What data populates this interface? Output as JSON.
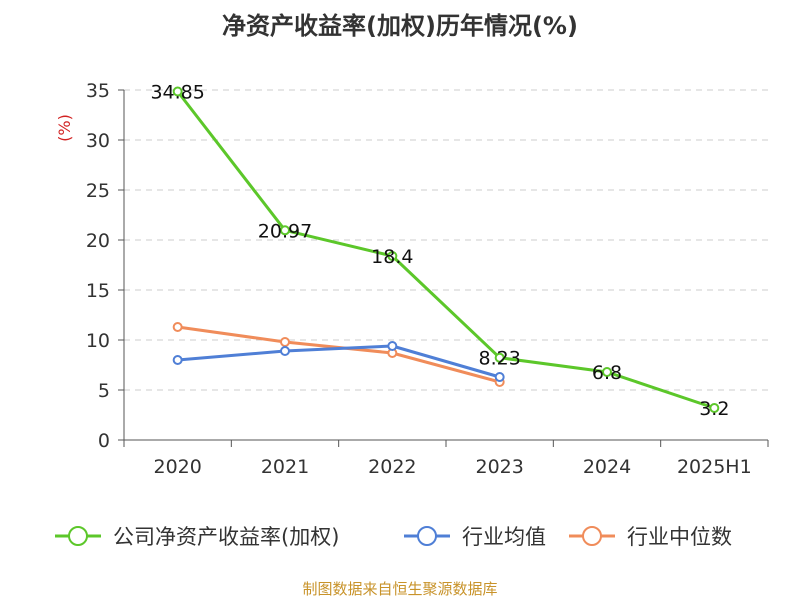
{
  "chart_data": {
    "type": "line",
    "title": "净资产收益率(加权)历年情况(%)",
    "ylabel": "(%)",
    "xlabel": "",
    "categories": [
      "2020",
      "2021",
      "2022",
      "2023",
      "2024",
      "2025H1"
    ],
    "ylim": [
      0,
      35
    ],
    "yticks": [
      0,
      5,
      10,
      15,
      20,
      25,
      30,
      35
    ],
    "grid": true,
    "legend_position": "bottom",
    "series": [
      {
        "name": "公司净资产收益率(加权)",
        "color": "#5cc72a",
        "values": [
          34.85,
          20.97,
          18.4,
          8.23,
          6.8,
          3.2
        ],
        "labels": [
          "34.85",
          "20.97",
          "18.4",
          "8.23",
          "6.8",
          "3.2"
        ]
      },
      {
        "name": "行业均值",
        "color": "#4f7fd6",
        "values": [
          8.0,
          8.9,
          9.4,
          6.3,
          null,
          null
        ]
      },
      {
        "name": "行业中位数",
        "color": "#f08c5a",
        "values": [
          11.3,
          9.8,
          8.7,
          5.8,
          null,
          null
        ]
      }
    ]
  },
  "source_note": "制图数据来自恒生聚源数据库"
}
